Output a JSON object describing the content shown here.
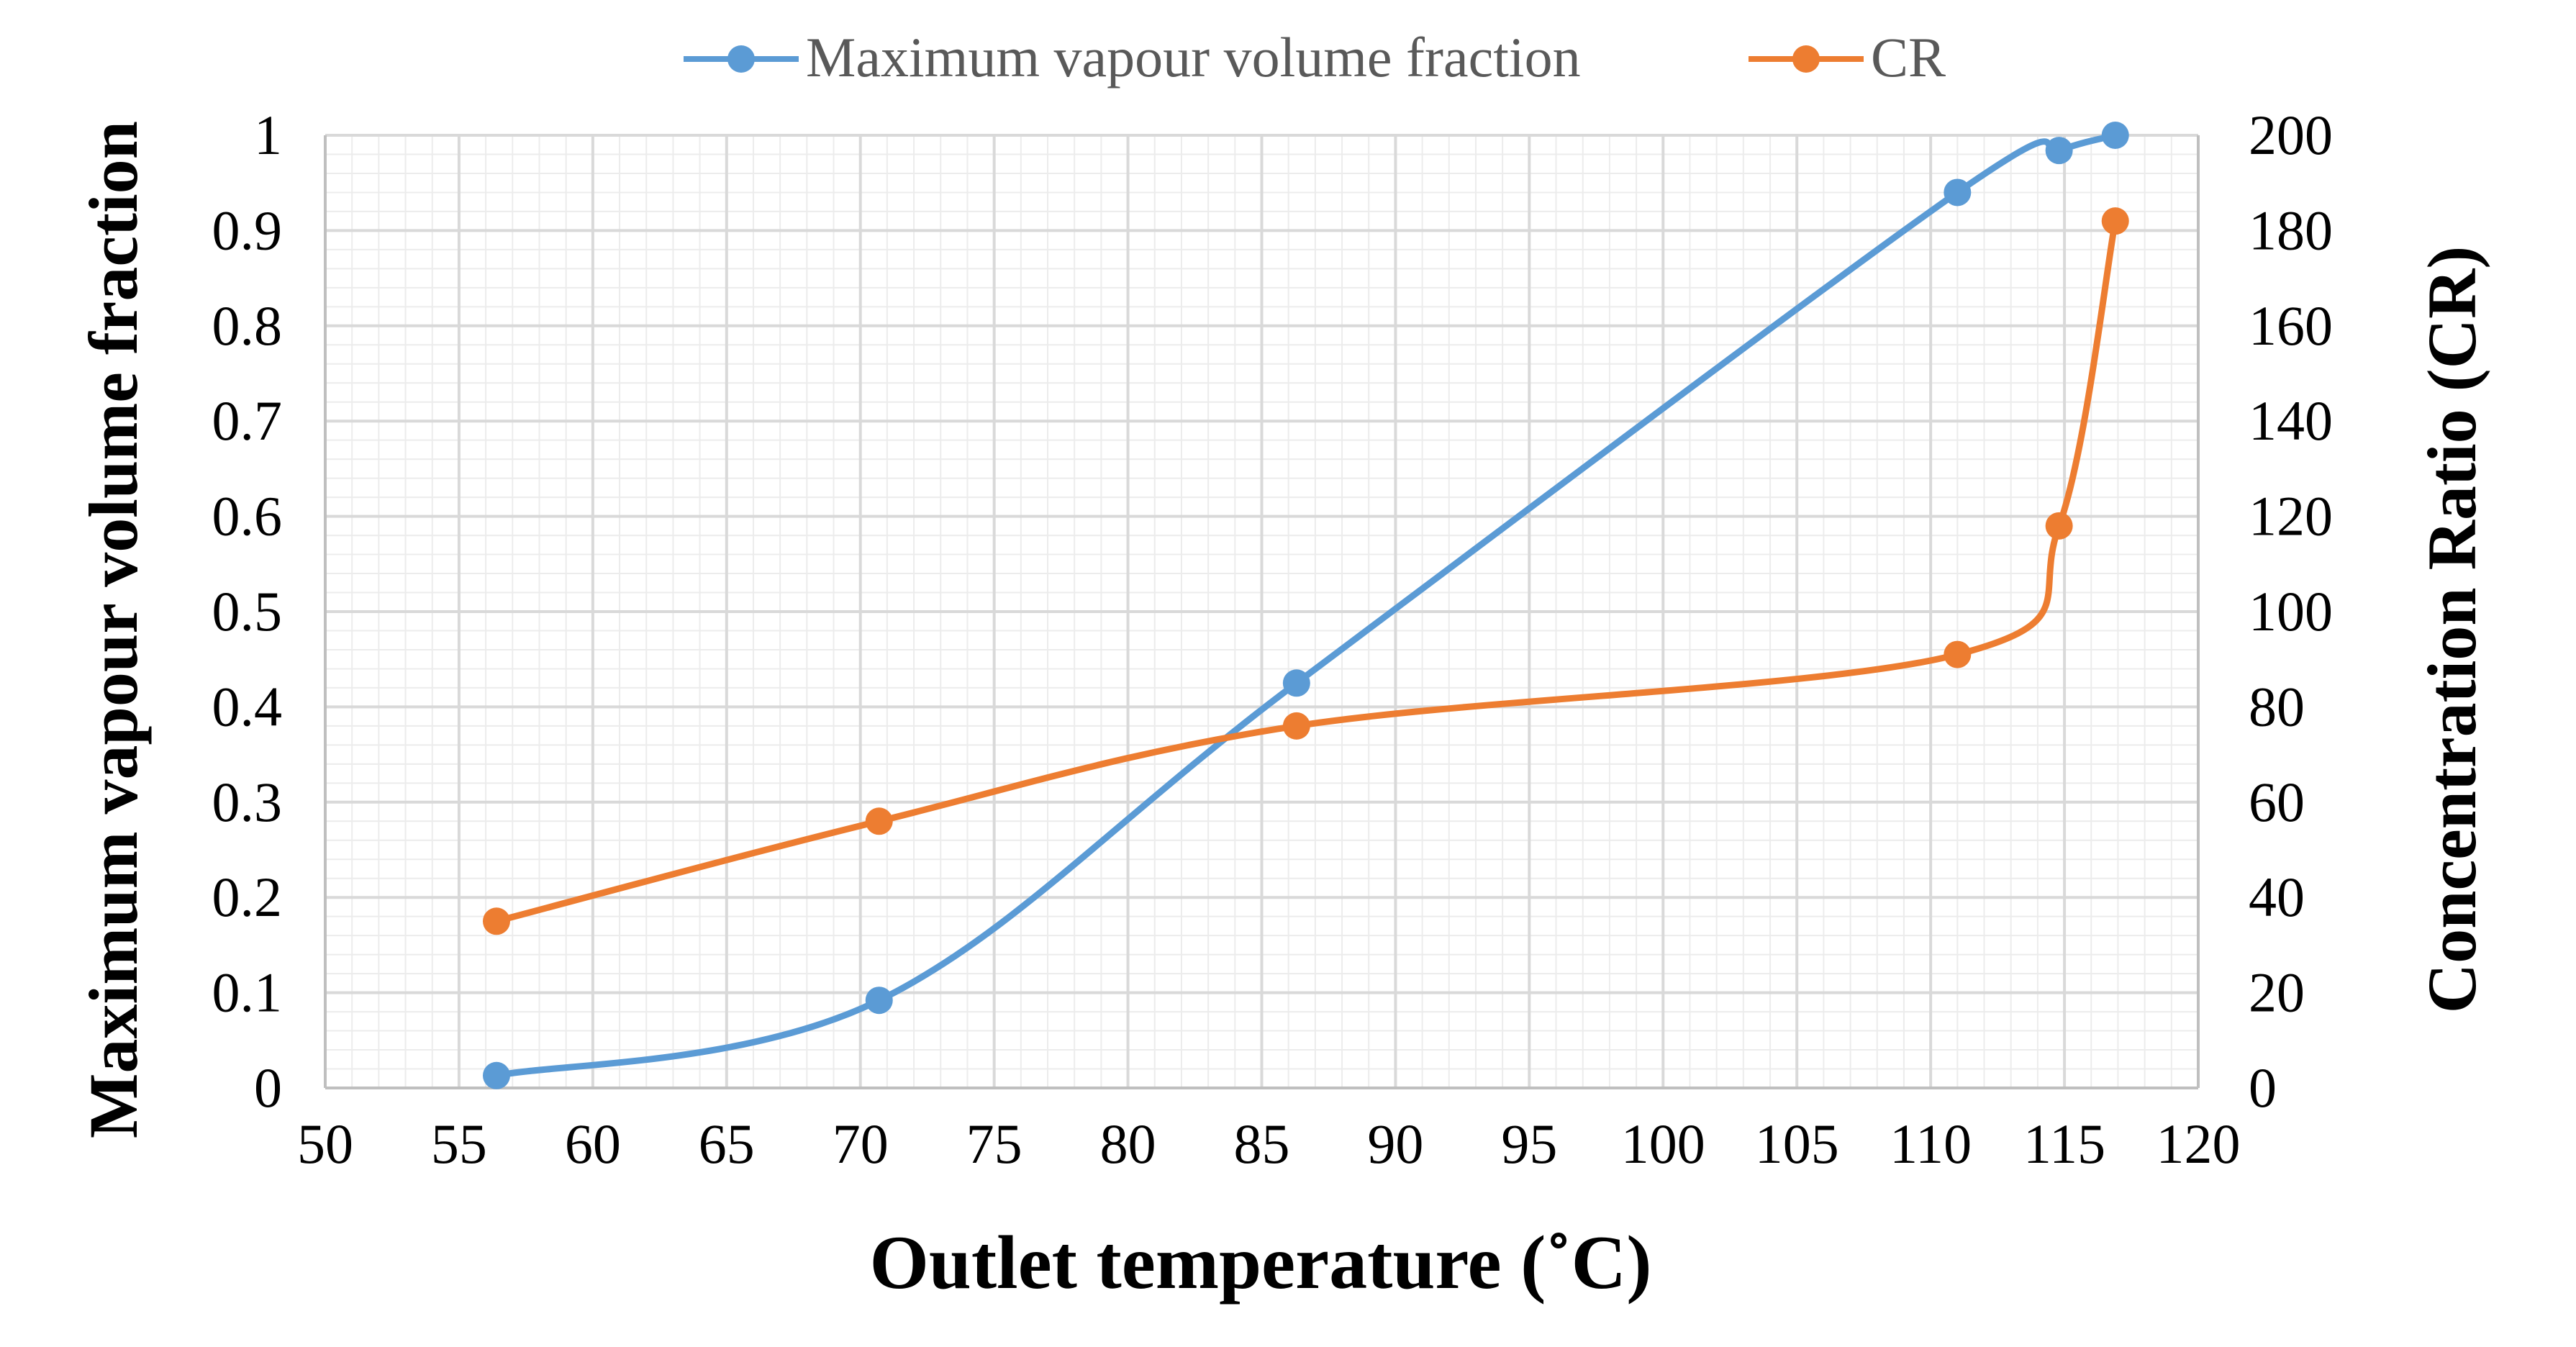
{
  "chart_data": {
    "type": "line",
    "title": "",
    "xlabel": "Outlet temperature (˚C)",
    "ylabel": "Maximum vapour volume fraction",
    "y2label": "Concentration Ratio (CR)",
    "xlim": [
      50,
      120
    ],
    "ylim": [
      0,
      1
    ],
    "y2lim": [
      0,
      200
    ],
    "xticks": [
      "50",
      "55",
      "60",
      "65",
      "70",
      "75",
      "80",
      "85",
      "90",
      "95",
      "100",
      "105",
      "110",
      "115",
      "120"
    ],
    "yticks": [
      "0",
      "0.1",
      "0.2",
      "0.3",
      "0.4",
      "0.5",
      "0.6",
      "0.7",
      "0.8",
      "0.9",
      "1"
    ],
    "y2ticks": [
      "0",
      "20",
      "40",
      "60",
      "80",
      "100",
      "120",
      "140",
      "160",
      "180",
      "200"
    ],
    "grid": true,
    "legend_position": "top-center",
    "series": [
      {
        "name": "Maximum vapour volume fraction",
        "axis": "left",
        "color": "#5B9BD5",
        "x": [
          56.4,
          70.7,
          86.3,
          111.0,
          114.8,
          116.9
        ],
        "y": [
          0.013,
          0.092,
          0.425,
          0.94,
          0.984,
          1.0
        ]
      },
      {
        "name": "CR",
        "axis": "right",
        "color": "#ED7D31",
        "x": [
          56.4,
          70.7,
          86.3,
          111.0,
          114.8,
          116.9
        ],
        "y": [
          35,
          56,
          76,
          91,
          118,
          182
        ]
      }
    ]
  }
}
